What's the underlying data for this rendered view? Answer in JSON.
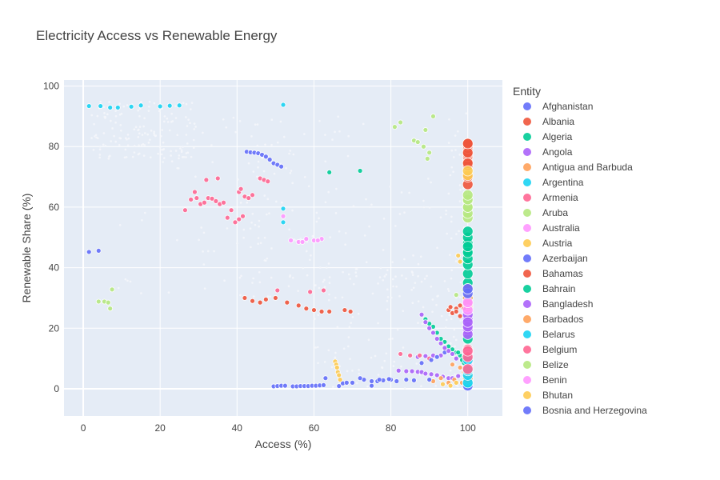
{
  "chart_data": {
    "type": "scatter",
    "title": "Electricity Access vs Renewable Energy",
    "xlabel": "Access (%)",
    "ylabel": "Renewable Share (%)",
    "xlim": [
      -5,
      109
    ],
    "ylim": [
      -9,
      102
    ],
    "xticks": [
      0,
      20,
      40,
      60,
      80,
      100
    ],
    "yticks": [
      0,
      20,
      40,
      60,
      80,
      100
    ],
    "grid": true,
    "legend_title": "Entity",
    "legend_position": "right",
    "series": [
      {
        "name": "Afghanistan",
        "color": "#636efa",
        "points": [
          [
            49.5,
            0.8
          ],
          [
            50.5,
            0.9
          ],
          [
            51.5,
            1.0
          ],
          [
            52.5,
            1.0
          ],
          [
            54.5,
            0.8
          ],
          [
            55.5,
            0.8
          ],
          [
            56.5,
            0.9
          ],
          [
            57.5,
            0.9
          ],
          [
            58.5,
            0.9
          ],
          [
            59.5,
            1.0
          ],
          [
            60.5,
            1.0
          ],
          [
            61.5,
            1.1
          ],
          [
            62.5,
            1.2
          ],
          [
            66.5,
            0.9
          ],
          [
            67.5,
            1.8
          ],
          [
            68.5,
            2.0
          ],
          [
            75.0,
            1.0
          ],
          [
            76.5,
            2.5
          ],
          [
            78.0,
            2.8
          ],
          [
            80.0,
            3.0
          ],
          [
            42.5,
            78.3
          ],
          [
            43.5,
            78.1
          ],
          [
            44.5,
            78.0
          ],
          [
            45.5,
            77.8
          ],
          [
            46.5,
            77.3
          ],
          [
            47.5,
            76.7
          ],
          [
            48.5,
            75.7
          ],
          [
            49.5,
            74.5
          ],
          [
            50.5,
            74.0
          ],
          [
            51.5,
            73.4
          ],
          [
            1.5,
            45.2
          ],
          [
            4.0,
            45.6
          ],
          [
            100,
            21.0
          ],
          [
            100,
            22.5
          ],
          [
            100,
            24.8
          ]
        ]
      },
      {
        "name": "Albania",
        "color": "#ef553b",
        "points": [
          [
            100,
            73.8
          ],
          [
            100,
            75.0
          ],
          [
            100,
            76.8
          ],
          [
            100,
            77.5
          ],
          [
            100,
            79.5
          ],
          [
            100,
            80.3
          ],
          [
            100,
            80.9
          ],
          [
            100,
            67.5
          ],
          [
            42.0,
            30.0
          ],
          [
            44.0,
            29.0
          ],
          [
            46.0,
            28.5
          ],
          [
            47.5,
            29.5
          ],
          [
            50.0,
            30.0
          ],
          [
            53.0,
            28.5
          ],
          [
            56.0,
            27.5
          ],
          [
            58.0,
            26.5
          ],
          [
            60.0,
            26.0
          ],
          [
            62.0,
            25.5
          ],
          [
            64.0,
            25.5
          ],
          [
            68.0,
            26.0
          ],
          [
            69.5,
            25.5
          ],
          [
            95.0,
            26.0
          ],
          [
            96.0,
            25.0
          ],
          [
            97.0,
            26.5
          ],
          [
            98.0,
            24.0
          ]
        ]
      },
      {
        "name": "Algeria",
        "color": "#00cc96",
        "points": [
          [
            100,
            2.5
          ],
          [
            100,
            4.0
          ],
          [
            100,
            6.0
          ],
          [
            100,
            8.5
          ],
          [
            100,
            12.0
          ],
          [
            100,
            16.5
          ],
          [
            100,
            20.0
          ],
          [
            100,
            30.0
          ],
          [
            100,
            35.0
          ],
          [
            100,
            38.0
          ],
          [
            100,
            41.0
          ],
          [
            100,
            43.0
          ],
          [
            100,
            45.5
          ],
          [
            100,
            48.0
          ],
          [
            100,
            50.0
          ],
          [
            100,
            52.0
          ],
          [
            89.0,
            23.0
          ],
          [
            90.0,
            21.5
          ],
          [
            91.0,
            20.5
          ],
          [
            92.0,
            18.5
          ],
          [
            93.0,
            16.5
          ],
          [
            94.0,
            15.5
          ],
          [
            95.0,
            14.0
          ],
          [
            96.0,
            13.0
          ],
          [
            97.0,
            12.0
          ],
          [
            98.0,
            11.0
          ],
          [
            99.0,
            10.5
          ],
          [
            72.0,
            72.0
          ],
          [
            64.0,
            71.5
          ]
        ]
      },
      {
        "name": "Angola",
        "color": "#ab63fa",
        "points": [
          [
            100,
            19.5
          ],
          [
            100,
            21.0
          ],
          [
            100,
            23.0
          ],
          [
            100,
            24.5
          ],
          [
            82.0,
            6.0
          ],
          [
            84.0,
            5.8
          ],
          [
            85.5,
            5.8
          ],
          [
            87.0,
            5.6
          ],
          [
            88.0,
            5.5
          ],
          [
            89.0,
            5.0
          ],
          [
            90.5,
            4.8
          ],
          [
            92.0,
            4.5
          ],
          [
            93.5,
            4.0
          ],
          [
            95.0,
            3.5
          ],
          [
            96.0,
            3.5
          ],
          [
            97.5,
            4.2
          ],
          [
            87.0,
            10.5
          ],
          [
            89.0,
            10.8
          ],
          [
            91.0,
            11.0
          ],
          [
            93.0,
            11.0
          ]
        ]
      },
      {
        "name": "Antigua and Barbuda",
        "color": "#ffa15a",
        "points": [
          [
            100,
            27.0
          ],
          [
            100,
            30.0
          ],
          [
            100,
            32.5
          ],
          [
            91.0,
            2.5
          ],
          [
            93.0,
            3.5
          ],
          [
            95.0,
            2.0
          ],
          [
            96.5,
            3.0
          ],
          [
            98.5,
            2.0
          ]
        ]
      },
      {
        "name": "Argentina",
        "color": "#19d3f3",
        "points": [
          [
            100,
            1.5
          ],
          [
            100,
            3.5
          ],
          [
            100,
            5.5
          ],
          [
            1.5,
            93.4
          ],
          [
            4.5,
            93.4
          ],
          [
            7.0,
            92.9
          ],
          [
            9.0,
            92.9
          ],
          [
            12.5,
            93.2
          ],
          [
            15.0,
            93.6
          ],
          [
            20.0,
            93.3
          ],
          [
            22.5,
            93.5
          ],
          [
            25.0,
            93.6
          ],
          [
            52.0,
            93.8
          ],
          [
            52.0,
            55.0
          ],
          [
            52.0,
            59.5
          ]
        ]
      },
      {
        "name": "Armenia",
        "color": "#ff6692",
        "points": [
          [
            100,
            10.0
          ],
          [
            100,
            13.0
          ],
          [
            100,
            28.0
          ],
          [
            26.5,
            59.0
          ],
          [
            28.0,
            62.5
          ],
          [
            29.5,
            63.0
          ],
          [
            30.5,
            61.0
          ],
          [
            31.5,
            61.5
          ],
          [
            32.5,
            63.0
          ],
          [
            33.5,
            62.8
          ],
          [
            34.5,
            62.0
          ],
          [
            35.5,
            61.0
          ],
          [
            36.5,
            61.5
          ],
          [
            37.5,
            56.5
          ],
          [
            38.5,
            59.0
          ],
          [
            39.5,
            55.0
          ],
          [
            40.5,
            56.0
          ],
          [
            41.5,
            57.0
          ],
          [
            42.0,
            63.5
          ],
          [
            43.0,
            63.0
          ],
          [
            44.0,
            64.0
          ],
          [
            29.0,
            65.0
          ],
          [
            32.0,
            69.0
          ],
          [
            35.0,
            69.5
          ],
          [
            46.0,
            69.5
          ],
          [
            47.0,
            69.0
          ],
          [
            48.0,
            68.5
          ],
          [
            40.5,
            65.0
          ],
          [
            41.0,
            66.0
          ],
          [
            82.5,
            11.5
          ],
          [
            85.0,
            11.0
          ],
          [
            87.5,
            11.0
          ],
          [
            90.0,
            10.0
          ]
        ]
      },
      {
        "name": "Aruba",
        "color": "#b6e880",
        "points": [
          [
            100,
            56.5
          ],
          [
            100,
            58.0
          ],
          [
            100,
            60.0
          ],
          [
            100,
            62.0
          ],
          [
            4.0,
            28.8
          ],
          [
            5.5,
            28.8
          ],
          [
            6.5,
            28.5
          ],
          [
            7.0,
            26.5
          ],
          [
            7.5,
            32.8
          ],
          [
            81.0,
            86.5
          ],
          [
            82.5,
            88.0
          ],
          [
            86.0,
            82.0
          ],
          [
            87.0,
            81.5
          ],
          [
            88.5,
            80.0
          ],
          [
            89.5,
            76.0
          ],
          [
            91.0,
            90.0
          ],
          [
            89.0,
            85.5
          ],
          [
            90.0,
            78.0
          ]
        ]
      },
      {
        "name": "Australia",
        "color": "#ff97ff",
        "points": [
          [
            52.0,
            57.0
          ],
          [
            54.0,
            49.0
          ],
          [
            56.0,
            48.5
          ],
          [
            58.0,
            49.5
          ],
          [
            60.0,
            49.0
          ],
          [
            62.0,
            49.5
          ],
          [
            100,
            7.5
          ],
          [
            100,
            9.0
          ],
          [
            100,
            11.5
          ]
        ]
      },
      {
        "name": "Austria",
        "color": "#fecb52",
        "points": [
          [
            65.5,
            9.0
          ],
          [
            65.8,
            8.0
          ],
          [
            66.0,
            7.0
          ],
          [
            66.2,
            5.5
          ],
          [
            66.5,
            4.5
          ],
          [
            66.8,
            3.0
          ],
          [
            93.5,
            1.5
          ],
          [
            95.5,
            1.0
          ],
          [
            97.0,
            2.0
          ],
          [
            100,
            4.5
          ]
        ]
      },
      {
        "name": "Azerbaijan",
        "color": "#636efa",
        "points": [
          [
            100,
            1.0
          ],
          [
            100,
            2.5
          ],
          [
            100,
            5.0
          ],
          [
            88.0,
            8.5
          ],
          [
            90.5,
            9.5
          ],
          [
            92.0,
            10.5
          ],
          [
            94.0,
            12.0
          ],
          [
            73.0,
            3.0
          ],
          [
            75.0,
            2.5
          ],
          [
            77.0,
            3.0
          ],
          [
            79.5,
            3.2
          ]
        ]
      },
      {
        "name": "Bahamas",
        "color": "#ef553b",
        "points": [
          [
            100,
            70.0
          ],
          [
            100,
            74.5
          ],
          [
            100,
            78.0
          ],
          [
            100,
            81.0
          ],
          [
            95.5,
            27.0
          ],
          [
            97.0,
            25.5
          ],
          [
            98.0,
            27.5
          ],
          [
            99.0,
            26.5
          ]
        ]
      },
      {
        "name": "Bahrain",
        "color": "#00cc96",
        "points": [
          [
            100,
            2.0
          ],
          [
            100,
            3.0
          ],
          [
            100,
            45.0
          ],
          [
            100,
            47.0
          ],
          [
            99.0,
            8.5
          ],
          [
            98.5,
            9.5
          ],
          [
            97.5,
            12.0
          ]
        ]
      },
      {
        "name": "Bangladesh",
        "color": "#ab63fa",
        "points": [
          [
            100,
            18.0
          ],
          [
            100,
            20.5
          ],
          [
            100,
            22.0
          ],
          [
            88.0,
            24.5
          ],
          [
            89.0,
            22.0
          ],
          [
            90.0,
            20.0
          ],
          [
            91.0,
            18.5
          ],
          [
            92.0,
            16.5
          ],
          [
            93.0,
            15.0
          ],
          [
            94.0,
            13.5
          ],
          [
            95.0,
            12.5
          ],
          [
            96.0,
            11.5
          ],
          [
            97.0,
            10.0
          ]
        ]
      },
      {
        "name": "Barbados",
        "color": "#ffa15a",
        "points": [
          [
            100,
            3.5
          ],
          [
            100,
            5.0
          ],
          [
            96.0,
            8.0
          ],
          [
            98.0,
            7.0
          ],
          [
            99.0,
            5.5
          ]
        ]
      },
      {
        "name": "Belarus",
        "color": "#19d3f3",
        "points": [
          [
            100,
            2.0
          ],
          [
            100,
            4.5
          ],
          [
            100,
            6.0
          ],
          [
            100,
            9.5
          ]
        ]
      },
      {
        "name": "Belgium",
        "color": "#ff6692",
        "points": [
          [
            100,
            10.5
          ],
          [
            100,
            12.5
          ],
          [
            100,
            6.5
          ],
          [
            100,
            33.0
          ],
          [
            62.5,
            32.5
          ],
          [
            59.0,
            32.0
          ],
          [
            50.5,
            32.5
          ]
        ]
      },
      {
        "name": "Belize",
        "color": "#b6e880",
        "points": [
          [
            100,
            60.0
          ],
          [
            100,
            62.5
          ],
          [
            100,
            64.0
          ],
          [
            99.0,
            32.5
          ],
          [
            97.0,
            31.0
          ]
        ]
      },
      {
        "name": "Benin",
        "color": "#ff97ff",
        "points": [
          [
            100,
            26.0
          ],
          [
            100,
            28.5
          ],
          [
            57.0,
            48.5
          ],
          [
            61.0,
            49.0
          ]
        ]
      },
      {
        "name": "Bhutan",
        "color": "#fecb52",
        "points": [
          [
            100,
            70.5
          ],
          [
            100,
            72.0
          ],
          [
            98.0,
            42.0
          ],
          [
            97.5,
            44.0
          ]
        ]
      },
      {
        "name": "Bosnia and Herzegovina",
        "color": "#636efa",
        "points": [
          [
            100,
            31.5
          ],
          [
            100,
            33.0
          ],
          [
            63.0,
            3.5
          ],
          [
            72.0,
            3.5
          ],
          [
            84.0,
            3.0
          ],
          [
            90.0,
            3.0
          ],
          [
            70.0,
            2.0
          ],
          [
            81.5,
            2.5
          ],
          [
            86.0,
            2.8
          ]
        ]
      }
    ]
  }
}
